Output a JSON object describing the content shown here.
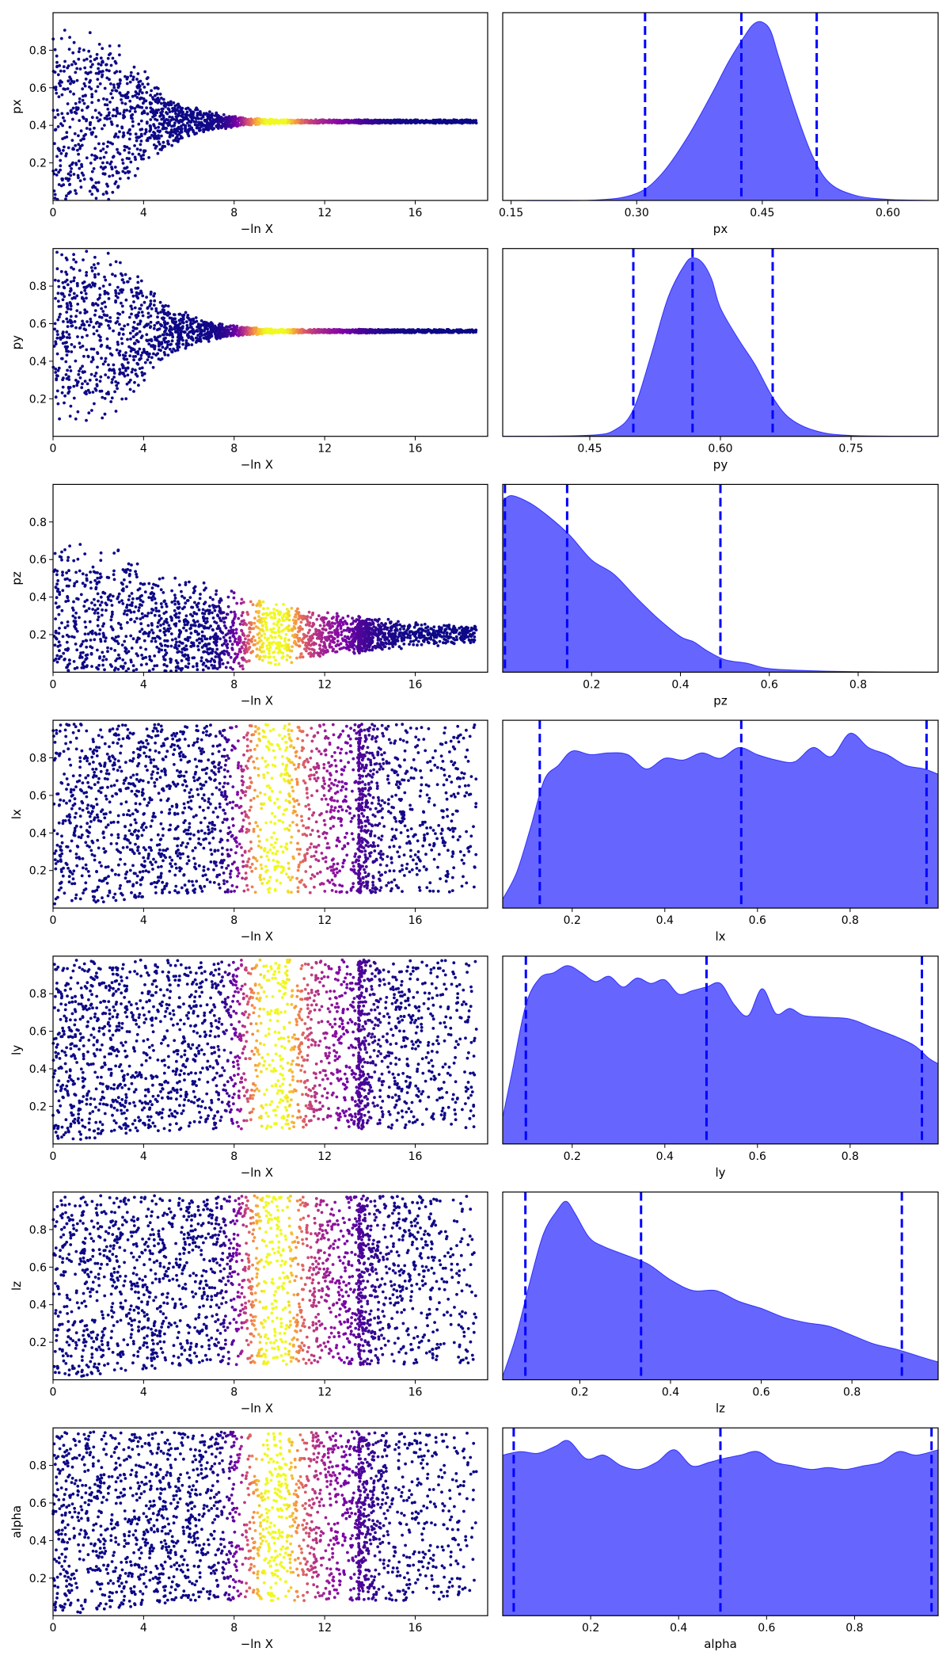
{
  "chart_data": {
    "type": "traceplot",
    "trace_xlabel": "−ln X",
    "trace_xlim": [
      0,
      19.2
    ],
    "trace_xticks": [
      "0",
      "4",
      "8",
      "12",
      "16"
    ],
    "trace_xtick_values": [
      0,
      4,
      8,
      12,
      16
    ],
    "colormap": [
      "#0d0887",
      "#7e03a8",
      "#cc4778",
      "#f89540",
      "#f0f921"
    ],
    "kde_color": "#0000ff",
    "quantile_line_color": "#0000ff",
    "params": [
      {
        "name": "px",
        "trace_ylim": [
          0,
          1
        ],
        "trace_yticks": [
          "0.2",
          "0.4",
          "0.6",
          "0.8"
        ],
        "trace_ytick_values": [
          0.2,
          0.4,
          0.6,
          0.8
        ],
        "converge_mean": 0.42,
        "converge_rate": 0.55,
        "kde_xlim": [
          0.14,
          0.66
        ],
        "kde_xticks": [
          "0.15",
          "0.30",
          "0.45",
          "0.60"
        ],
        "kde_xtick_values": [
          0.15,
          0.3,
          0.45,
          0.6
        ],
        "kde_x": [
          0.14,
          0.25,
          0.3,
          0.33,
          0.36,
          0.39,
          0.41,
          0.43,
          0.44,
          0.45,
          0.46,
          0.47,
          0.49,
          0.51,
          0.53,
          0.56,
          0.6,
          0.66
        ],
        "kde_y": [
          0,
          0.002,
          0.04,
          0.15,
          0.35,
          0.6,
          0.78,
          0.93,
          0.99,
          1.0,
          0.95,
          0.8,
          0.5,
          0.25,
          0.1,
          0.03,
          0.006,
          0
        ],
        "quantiles": [
          0.31,
          0.425,
          0.515
        ]
      },
      {
        "name": "py",
        "trace_ylim": [
          0,
          1
        ],
        "trace_yticks": [
          "0.2",
          "0.4",
          "0.6",
          "0.8"
        ],
        "trace_ytick_values": [
          0.2,
          0.4,
          0.6,
          0.8
        ],
        "converge_mean": 0.56,
        "converge_rate": 0.55,
        "kde_xlim": [
          0.35,
          0.85
        ],
        "kde_xticks": [
          "0.45",
          "0.60",
          "0.75"
        ],
        "kde_xtick_values": [
          0.45,
          0.6,
          0.75
        ],
        "kde_x": [
          0.35,
          0.45,
          0.48,
          0.5,
          0.52,
          0.54,
          0.56,
          0.57,
          0.58,
          0.59,
          0.6,
          0.62,
          0.64,
          0.66,
          0.68,
          0.71,
          0.75,
          0.85
        ],
        "kde_y": [
          0,
          0.006,
          0.04,
          0.15,
          0.45,
          0.78,
          0.97,
          1.0,
          0.97,
          0.88,
          0.72,
          0.55,
          0.4,
          0.22,
          0.1,
          0.03,
          0.005,
          0
        ],
        "quantiles": [
          0.5,
          0.568,
          0.66
        ]
      },
      {
        "name": "pz",
        "trace_ylim": [
          0,
          1
        ],
        "trace_yticks": [
          "0.2",
          "0.4",
          "0.6",
          "0.8"
        ],
        "trace_ytick_values": [
          0.2,
          0.4,
          0.6,
          0.8
        ],
        "converge_mean": 0.2,
        "converge_rate": 0.15,
        "kde_xlim": [
          0,
          0.98
        ],
        "kde_xticks": [
          "0.2",
          "0.4",
          "0.6",
          "0.8"
        ],
        "kde_xtick_values": [
          0.2,
          0.4,
          0.6,
          0.8
        ],
        "kde_x": [
          0,
          0.02,
          0.06,
          0.1,
          0.15,
          0.2,
          0.25,
          0.3,
          0.35,
          0.4,
          0.43,
          0.46,
          0.5,
          0.55,
          0.6,
          0.7,
          0.8,
          0.98
        ],
        "kde_y": [
          0.96,
          0.99,
          0.95,
          0.88,
          0.77,
          0.63,
          0.55,
          0.42,
          0.3,
          0.2,
          0.17,
          0.12,
          0.07,
          0.05,
          0.02,
          0.008,
          0.003,
          0
        ],
        "quantiles": [
          0.005,
          0.145,
          0.49
        ]
      },
      {
        "name": "lx",
        "trace_ylim": [
          0,
          1
        ],
        "trace_yticks": [
          "0.2",
          "0.4",
          "0.6",
          "0.8"
        ],
        "trace_ytick_values": [
          0.2,
          0.4,
          0.6,
          0.8
        ],
        "converge_mean": 0.5,
        "converge_rate": 0,
        "kde_xlim": [
          0.05,
          0.99
        ],
        "kde_xticks": [
          "0.2",
          "0.4",
          "0.6",
          "0.8"
        ],
        "kde_xtick_values": [
          0.2,
          0.4,
          0.6,
          0.8
        ],
        "kde_x": [
          0.05,
          0.08,
          0.11,
          0.14,
          0.17,
          0.2,
          0.24,
          0.28,
          0.32,
          0.36,
          0.4,
          0.44,
          0.48,
          0.52,
          0.56,
          0.6,
          0.64,
          0.68,
          0.72,
          0.76,
          0.8,
          0.84,
          0.88,
          0.92,
          0.96,
          0.99
        ],
        "kde_y": [
          0.05,
          0.2,
          0.45,
          0.72,
          0.8,
          0.88,
          0.86,
          0.87,
          0.86,
          0.78,
          0.84,
          0.83,
          0.87,
          0.84,
          0.9,
          0.86,
          0.83,
          0.82,
          0.9,
          0.85,
          0.98,
          0.9,
          0.86,
          0.8,
          0.78,
          0.75
        ],
        "quantiles": [
          0.13,
          0.565,
          0.965
        ]
      },
      {
        "name": "ly",
        "trace_ylim": [
          0,
          1
        ],
        "trace_yticks": [
          "0.2",
          "0.4",
          "0.6",
          "0.8"
        ],
        "trace_ytick_values": [
          0.2,
          0.4,
          0.6,
          0.8
        ],
        "converge_mean": 0.5,
        "converge_rate": 0,
        "kde_xlim": [
          0.05,
          0.99
        ],
        "kde_xticks": [
          "0.2",
          "0.4",
          "0.6",
          "0.8"
        ],
        "kde_xtick_values": [
          0.2,
          0.4,
          0.6,
          0.8
        ],
        "kde_x": [
          0.05,
          0.07,
          0.1,
          0.13,
          0.16,
          0.19,
          0.22,
          0.25,
          0.28,
          0.31,
          0.34,
          0.37,
          0.4,
          0.43,
          0.46,
          0.49,
          0.52,
          0.55,
          0.58,
          0.61,
          0.64,
          0.67,
          0.7,
          0.75,
          0.8,
          0.85,
          0.9,
          0.94,
          0.97,
          0.99
        ],
        "kde_y": [
          0.15,
          0.4,
          0.78,
          0.93,
          0.96,
          1.0,
          0.96,
          0.91,
          0.94,
          0.88,
          0.93,
          0.9,
          0.92,
          0.84,
          0.86,
          0.88,
          0.9,
          0.78,
          0.72,
          0.87,
          0.73,
          0.76,
          0.72,
          0.71,
          0.7,
          0.65,
          0.6,
          0.55,
          0.48,
          0.45
        ],
        "quantiles": [
          0.1,
          0.49,
          0.955
        ]
      },
      {
        "name": "lz",
        "trace_ylim": [
          0,
          1
        ],
        "trace_yticks": [
          "0.2",
          "0.4",
          "0.6",
          "0.8"
        ],
        "trace_ytick_values": [
          0.2,
          0.4,
          0.6,
          0.8
        ],
        "converge_mean": 0.5,
        "converge_rate": 0,
        "kde_xlim": [
          0.03,
          0.99
        ],
        "kde_xticks": [
          "0.2",
          "0.4",
          "0.6",
          "0.8"
        ],
        "kde_xtick_values": [
          0.2,
          0.4,
          0.6,
          0.8
        ],
        "kde_x": [
          0.03,
          0.06,
          0.09,
          0.12,
          0.15,
          0.17,
          0.19,
          0.22,
          0.25,
          0.3,
          0.35,
          0.4,
          0.45,
          0.5,
          0.55,
          0.6,
          0.65,
          0.7,
          0.75,
          0.8,
          0.85,
          0.9,
          0.95,
          0.99
        ],
        "kde_y": [
          0.02,
          0.25,
          0.55,
          0.82,
          0.95,
          1.0,
          0.93,
          0.8,
          0.75,
          0.7,
          0.65,
          0.56,
          0.5,
          0.5,
          0.44,
          0.4,
          0.35,
          0.32,
          0.3,
          0.25,
          0.2,
          0.17,
          0.13,
          0.1
        ],
        "quantiles": [
          0.08,
          0.335,
          0.91
        ]
      },
      {
        "name": "alpha",
        "trace_ylim": [
          0,
          1
        ],
        "trace_yticks": [
          "0.2",
          "0.4",
          "0.6",
          "0.8"
        ],
        "trace_ytick_values": [
          0.2,
          0.4,
          0.6,
          0.8
        ],
        "converge_mean": 0.5,
        "converge_rate": 0,
        "kde_xlim": [
          0,
          0.99
        ],
        "kde_xticks": [
          "0.2",
          "0.4",
          "0.6",
          "0.8"
        ],
        "kde_xtick_values": [
          0.2,
          0.4,
          0.6,
          0.8
        ],
        "kde_x": [
          0,
          0.04,
          0.08,
          0.12,
          0.15,
          0.19,
          0.23,
          0.27,
          0.31,
          0.35,
          0.39,
          0.43,
          0.47,
          0.5,
          0.54,
          0.58,
          0.62,
          0.66,
          0.7,
          0.74,
          0.78,
          0.82,
          0.86,
          0.9,
          0.94,
          0.99
        ],
        "kde_y": [
          0.9,
          0.92,
          0.91,
          0.95,
          0.98,
          0.88,
          0.9,
          0.84,
          0.82,
          0.86,
          0.93,
          0.84,
          0.86,
          0.88,
          0.9,
          0.92,
          0.86,
          0.84,
          0.82,
          0.83,
          0.82,
          0.84,
          0.86,
          0.92,
          0.9,
          0.93
        ],
        "quantiles": [
          0.025,
          0.495,
          0.975
        ]
      }
    ]
  }
}
